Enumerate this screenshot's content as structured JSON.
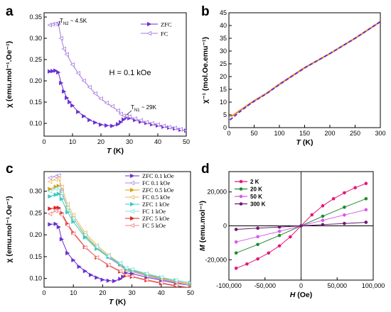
{
  "chart_data": [
    {
      "id": "a",
      "type": "line",
      "panel_label": "a",
      "xlabel": "T",
      "xunit": "(K)",
      "ylabel": "χ (emu.mol⁻¹.Oe⁻¹)",
      "xlim": [
        0,
        50
      ],
      "ylim": [
        0.07,
        0.36
      ],
      "xticks": [
        0,
        10,
        20,
        30,
        40,
        50
      ],
      "yticks": [
        0.1,
        0.15,
        0.2,
        0.25,
        0.3,
        0.35
      ],
      "annotations": [
        {
          "text": "H = 0.1 kOe"
        },
        {
          "text": "T",
          "sub": "N2",
          "rest": " ~ 4.5K"
        },
        {
          "text": "T",
          "sub": "N1",
          "rest": " ~ 29K"
        }
      ],
      "legend_position": "top-right",
      "series": [
        {
          "name": "ZFC",
          "color": "#6a2fd1",
          "marker": "filled-triangle",
          "x": [
            2,
            3,
            4,
            5,
            6,
            7,
            8,
            9,
            10,
            12,
            14,
            16,
            18,
            20,
            22,
            24,
            26,
            27,
            28,
            29,
            30,
            32,
            34,
            36,
            38,
            40,
            42,
            44,
            46,
            48,
            50
          ],
          "y": [
            0.222,
            0.223,
            0.224,
            0.22,
            0.195,
            0.175,
            0.16,
            0.15,
            0.142,
            0.127,
            0.117,
            0.108,
            0.102,
            0.097,
            0.095,
            0.094,
            0.098,
            0.103,
            0.109,
            0.114,
            0.112,
            0.108,
            0.104,
            0.101,
            0.098,
            0.095,
            0.092,
            0.09,
            0.088,
            0.085,
            0.083
          ]
        },
        {
          "name": "FC",
          "color": "#a77ae0",
          "marker": "open-triangle",
          "x": [
            2,
            3,
            4,
            5,
            6,
            7,
            8,
            10,
            12,
            14,
            16,
            18,
            20,
            22,
            24,
            26,
            27,
            28,
            29,
            30,
            32,
            34,
            36,
            38,
            40,
            42,
            44,
            46,
            48,
            50
          ],
          "y": [
            0.331,
            0.333,
            0.334,
            0.336,
            0.3,
            0.275,
            0.262,
            0.238,
            0.218,
            0.2,
            0.185,
            0.17,
            0.158,
            0.148,
            0.14,
            0.13,
            0.122,
            0.118,
            0.117,
            0.116,
            0.111,
            0.107,
            0.103,
            0.1,
            0.097,
            0.094,
            0.091,
            0.089,
            0.086,
            0.083
          ]
        }
      ]
    },
    {
      "id": "b",
      "type": "line",
      "panel_label": "b",
      "xlabel": "T",
      "xunit": "(K)",
      "ylabel": "χ⁻¹ (mol.Oe.emu⁻¹)",
      "xlim": [
        0,
        300
      ],
      "ylim": [
        0,
        45
      ],
      "xticks": [
        0,
        50,
        100,
        150,
        200,
        250,
        300
      ],
      "yticks": [
        0,
        5,
        10,
        15,
        20,
        25,
        30,
        35,
        40,
        45
      ],
      "series": [
        {
          "name": "",
          "color": "#f08a24",
          "x": [
            2,
            5,
            10,
            20,
            30,
            40,
            50,
            75,
            100,
            150,
            200,
            250,
            300
          ],
          "y": [
            4.5,
            4.6,
            5.0,
            6.5,
            7.8,
            9.2,
            10.5,
            13.5,
            17.0,
            23.5,
            29.0,
            35.0,
            41.5
          ]
        },
        {
          "name": "",
          "color": "#6a2fd1",
          "dashed": true,
          "x": [
            2,
            5,
            10,
            20,
            30,
            40,
            50,
            75,
            100,
            150,
            200,
            250,
            300
          ],
          "y": [
            3.0,
            3.5,
            4.3,
            6.0,
            7.5,
            9.0,
            10.3,
            13.4,
            16.9,
            23.4,
            29.0,
            35.0,
            41.5
          ]
        }
      ]
    },
    {
      "id": "c",
      "type": "line",
      "panel_label": "c",
      "xlabel": "T",
      "xunit": "(K)",
      "ylabel": "χ (emu.mol⁻¹.Oe⁻¹)",
      "xlim": [
        0,
        50
      ],
      "ylim": [
        0.08,
        0.345
      ],
      "xticks": [
        0,
        10,
        20,
        30,
        40,
        50
      ],
      "yticks": [
        0.1,
        0.15,
        0.2,
        0.25,
        0.3
      ],
      "legend_position": "top-right",
      "series": [
        {
          "name": "ZFC 0.1 kOe",
          "color": "#6a2fd1",
          "marker": "filled-triangle",
          "x": [
            2,
            4,
            5,
            6,
            8,
            10,
            12,
            14,
            16,
            18,
            20,
            22,
            24,
            26,
            27,
            28,
            30,
            35,
            40,
            45,
            50
          ],
          "y": [
            0.224,
            0.225,
            0.218,
            0.19,
            0.158,
            0.142,
            0.127,
            0.117,
            0.108,
            0.102,
            0.097,
            0.095,
            0.094,
            0.099,
            0.104,
            0.112,
            0.111,
            0.103,
            0.096,
            0.089,
            0.084
          ]
        },
        {
          "name": "FC 0.1 kOe",
          "color": "#b08ae6",
          "marker": "open-triangle",
          "x": [
            2,
            4,
            5,
            6,
            8,
            10,
            14,
            18,
            22,
            26,
            28,
            30,
            35,
            40,
            45,
            50
          ],
          "y": [
            0.331,
            0.334,
            0.336,
            0.3,
            0.262,
            0.238,
            0.2,
            0.17,
            0.148,
            0.13,
            0.118,
            0.116,
            0.106,
            0.098,
            0.091,
            0.084
          ]
        },
        {
          "name": "ZFC 0.5 kOe",
          "color": "#d9a000",
          "marker": "filled-triangle",
          "x": [
            2,
            4,
            5,
            6,
            8,
            10,
            14,
            18,
            22,
            26,
            28,
            30,
            35,
            40,
            45,
            50
          ],
          "y": [
            0.305,
            0.31,
            0.312,
            0.295,
            0.262,
            0.238,
            0.198,
            0.17,
            0.15,
            0.132,
            0.12,
            0.118,
            0.108,
            0.1,
            0.093,
            0.087
          ]
        },
        {
          "name": "FC 0.5 kOe",
          "color": "#f0b65a",
          "marker": "open-triangle",
          "x": [
            2,
            4,
            5,
            6,
            8,
            10,
            14,
            18,
            22,
            26,
            28,
            30,
            35,
            40,
            45,
            50
          ],
          "y": [
            0.322,
            0.327,
            0.329,
            0.31,
            0.27,
            0.245,
            0.205,
            0.176,
            0.154,
            0.135,
            0.123,
            0.12,
            0.11,
            0.101,
            0.094,
            0.088
          ]
        },
        {
          "name": "ZFC 1 kOe",
          "color": "#3cc8c8",
          "marker": "filled-triangle",
          "x": [
            2,
            4,
            5,
            6,
            8,
            10,
            14,
            18,
            22,
            26,
            28,
            30,
            35,
            40,
            45,
            50
          ],
          "y": [
            0.288,
            0.292,
            0.294,
            0.282,
            0.252,
            0.23,
            0.194,
            0.168,
            0.149,
            0.133,
            0.122,
            0.119,
            0.11,
            0.102,
            0.096,
            0.09
          ]
        },
        {
          "name": "FC 1 kOe",
          "color": "#7fe0e0",
          "marker": "open-triangle",
          "x": [
            2,
            4,
            5,
            6,
            8,
            10,
            14,
            18,
            22,
            26,
            28,
            30,
            35,
            40,
            45,
            50
          ],
          "y": [
            0.3,
            0.306,
            0.308,
            0.295,
            0.262,
            0.238,
            0.2,
            0.172,
            0.151,
            0.135,
            0.124,
            0.121,
            0.111,
            0.103,
            0.096,
            0.09
          ]
        },
        {
          "name": "ZFC 5 kOe",
          "color": "#e02020",
          "marker": "filled-triangle",
          "x": [
            2,
            4,
            5,
            6,
            8,
            10,
            14,
            18,
            22,
            26,
            28,
            30,
            35,
            40,
            45,
            50
          ],
          "y": [
            0.26,
            0.262,
            0.262,
            0.25,
            0.225,
            0.205,
            0.172,
            0.148,
            0.13,
            0.116,
            0.107,
            0.104,
            0.096,
            0.089,
            0.083,
            0.078
          ]
        },
        {
          "name": "FC 5 kOe",
          "color": "#f08080",
          "marker": "open-triangle",
          "x": [
            2,
            4,
            5,
            6,
            8,
            10,
            14,
            18,
            22,
            26,
            28,
            30,
            35,
            40,
            45,
            50
          ],
          "y": [
            0.248,
            0.255,
            0.256,
            0.246,
            0.222,
            0.203,
            0.171,
            0.148,
            0.131,
            0.117,
            0.108,
            0.105,
            0.097,
            0.09,
            0.084,
            0.079
          ]
        }
      ]
    },
    {
      "id": "d",
      "type": "line",
      "panel_label": "d",
      "xlabel": "H",
      "xunit": "(Oe)",
      "ylabel": "M (emu.mol⁻¹)",
      "xlim": [
        -100000,
        100000
      ],
      "ylim": [
        -32000,
        32000
      ],
      "xticks": [
        -100000,
        -50000,
        0,
        50000,
        100000
      ],
      "xtick_labels": [
        "-100,000",
        "-50,000",
        "0",
        "50,000",
        "100,000"
      ],
      "yticks": [
        -20000,
        0,
        20000
      ],
      "ytick_labels": [
        "-20,000",
        "0",
        "20,000"
      ],
      "legend_position": "top-left",
      "series": [
        {
          "name": "2 K",
          "color": "#e6157a",
          "marker": "filled-circle",
          "x": [
            -90000,
            -75000,
            -60000,
            -45000,
            -30000,
            -15000,
            0,
            15000,
            30000,
            45000,
            60000,
            75000,
            90000
          ],
          "y": [
            -25000,
            -22500,
            -19500,
            -16000,
            -11800,
            -6500,
            0,
            6500,
            11800,
            16000,
            19500,
            22500,
            25000
          ]
        },
        {
          "name": "20 K",
          "color": "#1e8a2e",
          "marker": "filled-circle",
          "x": [
            -90000,
            -60000,
            -30000,
            0,
            30000,
            60000,
            90000
          ],
          "y": [
            -16000,
            -11000,
            -5700,
            0,
            5700,
            11000,
            16000
          ]
        },
        {
          "name": "50 K",
          "color": "#d55ae8",
          "marker": "filled-circle",
          "x": [
            -90000,
            -60000,
            -30000,
            0,
            30000,
            60000,
            90000
          ],
          "y": [
            -9500,
            -6400,
            -3250,
            0,
            3250,
            6400,
            9500
          ]
        },
        {
          "name": "300 K",
          "color": "#6b1a6e",
          "marker": "filled-circle",
          "x": [
            -90000,
            -60000,
            -30000,
            0,
            30000,
            60000,
            90000
          ],
          "y": [
            -2100,
            -1400,
            -700,
            0,
            700,
            1400,
            2100
          ]
        }
      ]
    }
  ]
}
